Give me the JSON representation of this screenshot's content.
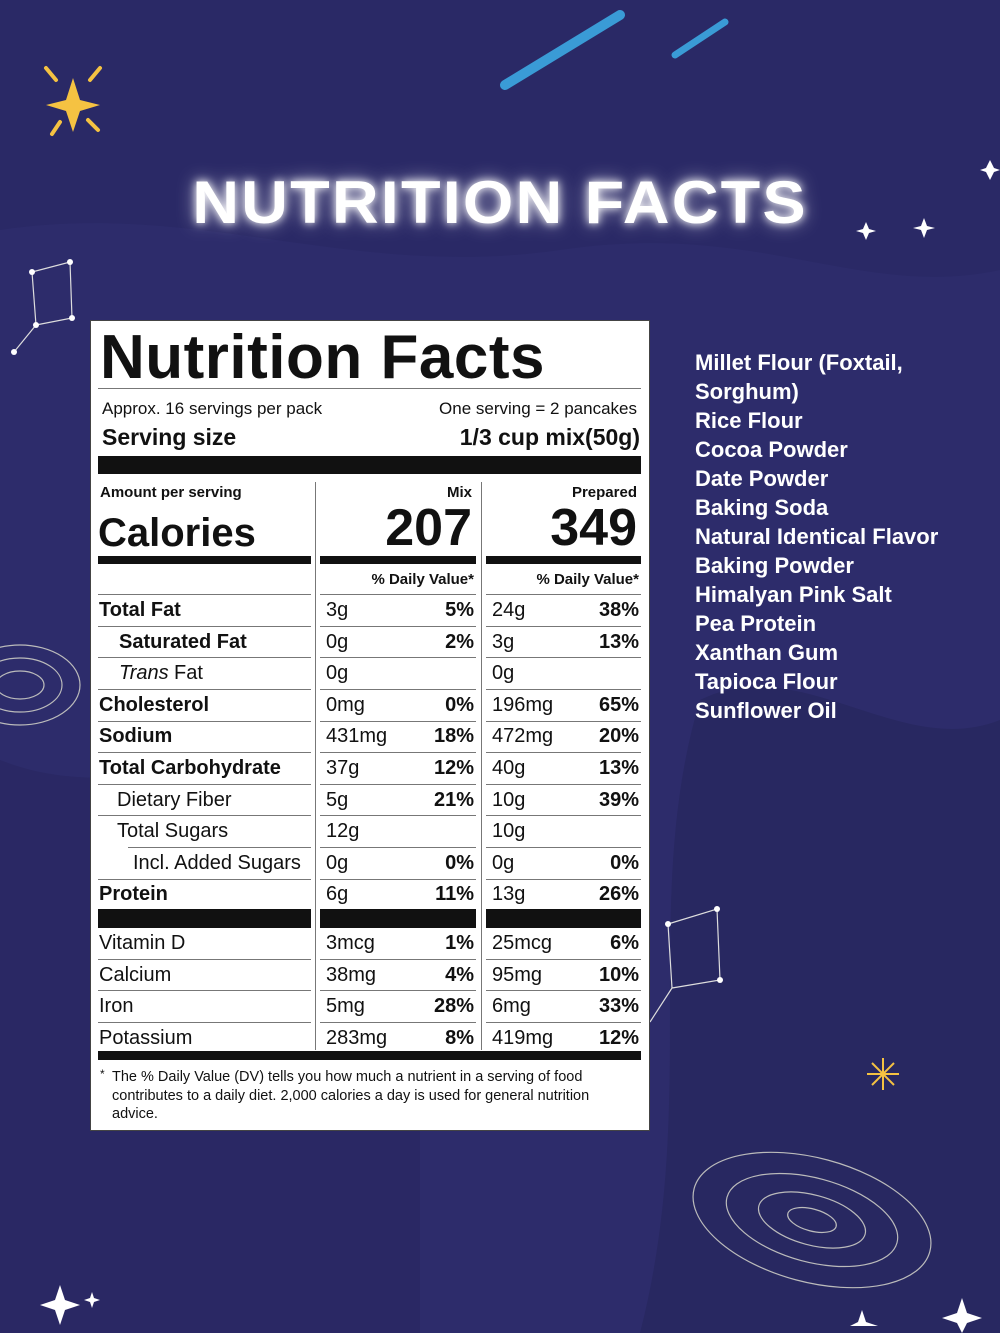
{
  "heading": "NUTRITION FACTS",
  "label": {
    "title": "Nutrition Facts",
    "servings_per_pack": "Approx. 16 servings per pack",
    "serving_note": "One serving = 2 pancakes",
    "serving_size_label": "Serving size",
    "serving_size": "1/3 cup mix(50g)",
    "amount_per_serving": "Amount per serving",
    "calories_label": "Calories",
    "columns": [
      {
        "name": "Mix",
        "calories": 207,
        "dv_header": "% Daily Value*"
      },
      {
        "name": "Prepared",
        "calories": 349,
        "dv_header": "% Daily Value*"
      }
    ],
    "rows": [
      {
        "name": "Total Fat",
        "mix": "3g",
        "mix_dv": "5%",
        "prepared": "24g",
        "prepared_dv": "38%"
      },
      {
        "name": "Saturated Fat",
        "mix": "0g",
        "mix_dv": "2%",
        "prepared": "3g",
        "prepared_dv": "13%"
      },
      {
        "prefix": "Trans",
        "name": "Fat",
        "mix": "0g",
        "mix_dv": null,
        "prepared": "0g",
        "prepared_dv": null
      },
      {
        "name": "Cholesterol",
        "mix": "0mg",
        "mix_dv": "0%",
        "prepared": "196mg",
        "prepared_dv": "65%"
      },
      {
        "name": "Sodium",
        "mix": "431mg",
        "mix_dv": "18%",
        "prepared": "472mg",
        "prepared_dv": "20%"
      },
      {
        "name": "Total Carbohydrate",
        "mix": "37g",
        "mix_dv": "12%",
        "prepared": "40g",
        "prepared_dv": "13%"
      },
      {
        "name": "Dietary Fiber",
        "mix": "5g",
        "mix_dv": "21%",
        "prepared": "10g",
        "prepared_dv": "39%"
      },
      {
        "name": "Total Sugars",
        "mix": "12g",
        "mix_dv": null,
        "prepared": "10g",
        "prepared_dv": null
      },
      {
        "name": "Incl. Added Sugars",
        "mix": "0g",
        "mix_dv": "0%",
        "prepared": "0g",
        "prepared_dv": "0%"
      },
      {
        "name": "Protein",
        "mix": "6g",
        "mix_dv": "11%",
        "prepared": "13g",
        "prepared_dv": "26%"
      }
    ],
    "vitamins": [
      {
        "name": "Vitamin D",
        "mix": "3mcg",
        "mix_dv": "1%",
        "prepared": "25mcg",
        "prepared_dv": "6%"
      },
      {
        "name": "Calcium",
        "mix": "38mg",
        "mix_dv": "4%",
        "prepared": "95mg",
        "prepared_dv": "10%"
      },
      {
        "name": "Iron",
        "mix": "5mg",
        "mix_dv": "28%",
        "prepared": "6mg",
        "prepared_dv": "33%"
      },
      {
        "name": "Potassium",
        "mix": "283mg",
        "mix_dv": "8%",
        "prepared": "419mg",
        "prepared_dv": "12%"
      }
    ],
    "footnote_mark": "*",
    "footnote": "The % Daily Value (DV) tells you how much a nutrient in a serving of food contributes to a daily diet. 2,000 calories a day is used for general nutrition advice."
  },
  "ingredients": [
    "Millet Flour (Foxtail, Sorghum)",
    "Rice Flour",
    "Cocoa Powder",
    "Date Powder",
    "Baking Soda",
    "Natural Identical Flavor",
    "Baking Powder",
    "Himalyan Pink Salt",
    "Pea Protein",
    "Xanthan Gum",
    "Tapioca Flour",
    "Sunflower Oil"
  ]
}
